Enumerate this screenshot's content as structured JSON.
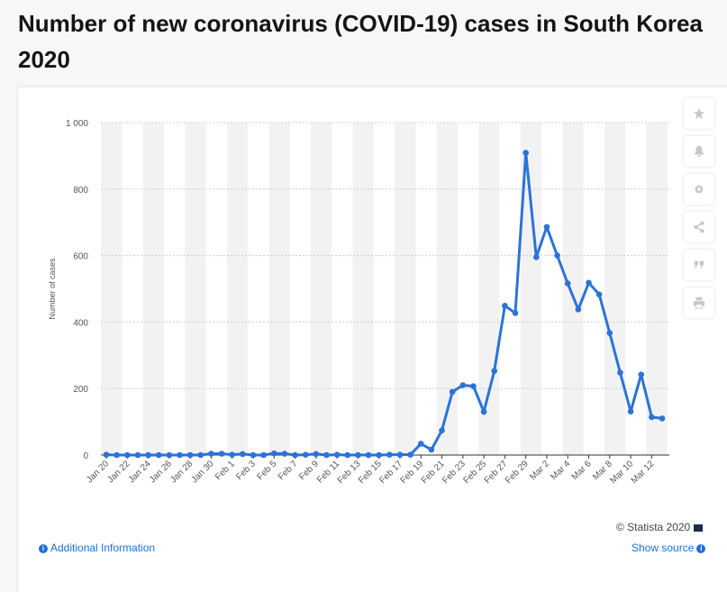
{
  "page": {
    "title_line1": "Number of new coronavirus (COVID-19) cases in South Korea",
    "title_line2": "2020"
  },
  "footer": {
    "additional_info": "Additional Information",
    "show_source": "Show source",
    "copyright": "© Statista 2020"
  },
  "toolbar": {
    "icons": [
      "star-icon",
      "bell-icon",
      "gear-icon",
      "share-icon",
      "quote-icon",
      "print-icon"
    ]
  },
  "colors": {
    "line": "#2b73d6",
    "band": "#f2f2f2",
    "link": "#1d6fd8"
  },
  "chart_data": {
    "type": "line",
    "title": "",
    "xlabel": "",
    "ylabel": "Number of cases",
    "ylim": [
      0,
      1000
    ],
    "yticks": [
      0,
      200,
      400,
      600,
      800,
      1000
    ],
    "ytick_labels": [
      "0",
      "200",
      "400",
      "600",
      "800",
      "1 000"
    ],
    "grid": true,
    "categories": [
      "Jan 20",
      "Jan 21",
      "Jan 22",
      "Jan 23",
      "Jan 24",
      "Jan 25",
      "Jan 26",
      "Jan 27",
      "Jan 28",
      "Jan 29",
      "Jan 30",
      "Jan 31",
      "Feb 1",
      "Feb 2",
      "Feb 3",
      "Feb 4",
      "Feb 5",
      "Feb 6",
      "Feb 7",
      "Feb 8",
      "Feb 9",
      "Feb 10",
      "Feb 11",
      "Feb 12",
      "Feb 13",
      "Feb 14",
      "Feb 15",
      "Feb 16",
      "Feb 17",
      "Feb 18",
      "Feb 19",
      "Feb 20",
      "Feb 21",
      "Feb 22",
      "Feb 23",
      "Feb 24",
      "Feb 25",
      "Feb 26",
      "Feb 27",
      "Feb 28",
      "Feb 29",
      "Mar 1",
      "Mar 2",
      "Mar 3",
      "Mar 4",
      "Mar 5",
      "Mar 6",
      "Mar 7",
      "Mar 8",
      "Mar 9",
      "Mar 10",
      "Mar 11",
      "Mar 12",
      "Mar 13"
    ],
    "x_tick_labels": [
      "Jan 20",
      "Jan 22",
      "Jan 24",
      "Jan 26",
      "Jan 28",
      "Jan 30",
      "Feb 1",
      "Feb 3",
      "Feb 5",
      "Feb 7",
      "Feb 9",
      "Feb 11",
      "Feb 13",
      "Feb 15",
      "Feb 17",
      "Feb 19",
      "Feb 21",
      "Feb 23",
      "Feb 25",
      "Feb 27",
      "Feb 29",
      "Mar 2",
      "Mar 4",
      "Mar 6",
      "Mar 8",
      "Mar 10",
      "Mar 12"
    ],
    "series": [
      {
        "name": "New cases",
        "values": [
          1,
          0,
          0,
          0,
          0,
          0,
          0,
          0,
          0,
          0,
          4,
          4,
          1,
          3,
          0,
          0,
          5,
          4,
          0,
          1,
          3,
          0,
          1,
          0,
          0,
          0,
          0,
          1,
          1,
          1,
          34,
          16,
          74,
          190,
          210,
          207,
          130,
          253,
          449,
          427,
          909,
          595,
          686,
          600,
          516,
          438,
          518,
          483,
          367,
          248,
          131,
          242,
          114,
          110
        ]
      }
    ]
  }
}
